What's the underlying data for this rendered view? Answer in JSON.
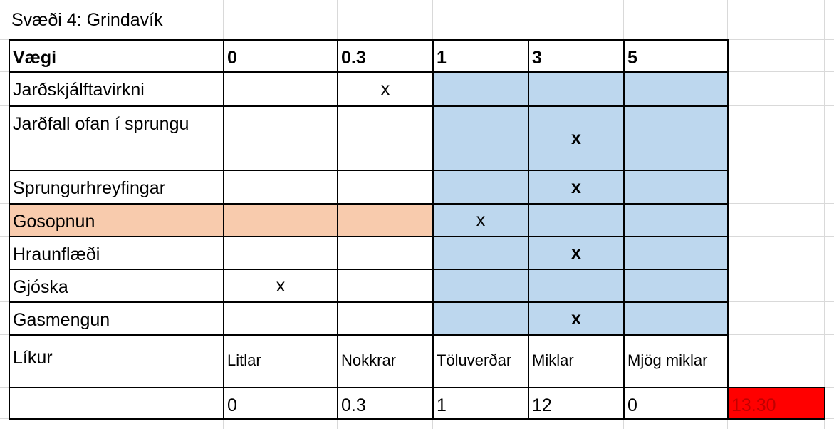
{
  "title": "Svæði 4: Grindavík",
  "table": {
    "header": [
      "Vægi",
      "0",
      "0.3",
      "1",
      "3",
      "5"
    ],
    "blue_fill": "#bdd7ee",
    "rows": [
      {
        "label": "Jarðskjálftavirkni",
        "cells": [
          null,
          "x",
          null,
          null,
          null
        ],
        "bold": false
      },
      {
        "label": "Jarðfall ofan í sprungu",
        "cells": [
          null,
          null,
          null,
          "x",
          null
        ],
        "bold": true
      },
      {
        "label": "Sprungurhreyfingar",
        "cells": [
          null,
          null,
          null,
          "x",
          null
        ],
        "bold": true
      },
      {
        "label": "Gosopnun",
        "cells": [
          null,
          null,
          "x",
          null,
          null
        ],
        "bold": false,
        "fill": "#f8cbad"
      },
      {
        "label": "Hraunflæði",
        "cells": [
          null,
          null,
          null,
          "x",
          null
        ],
        "bold": true
      },
      {
        "label": "Gjóska",
        "cells": [
          "x",
          null,
          null,
          null,
          null
        ],
        "bold": false
      },
      {
        "label": "Gasmengun",
        "cells": [
          null,
          null,
          null,
          "x",
          null
        ],
        "bold": true
      }
    ],
    "likelihood": [
      "Líkur",
      "Litlar",
      "Nokkrar",
      "Töluverðar",
      "Miklar",
      "Mjög miklar"
    ],
    "scores": [
      "0",
      "0.3",
      "1",
      "12",
      "0"
    ],
    "total": {
      "text": "13.30",
      "fill": "#ff0000",
      "color": "#c00000"
    }
  }
}
